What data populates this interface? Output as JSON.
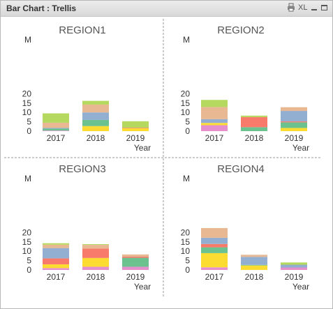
{
  "window": {
    "title": "Bar Chart : Trellis",
    "icons": [
      "print-icon",
      "xl-export-icon",
      "minimize-icon",
      "maximize-icon"
    ],
    "xl_label": "XL"
  },
  "chart_data": {
    "type": "bar",
    "stacked": true,
    "layout": "trellis 2x2",
    "categories": [
      "2017",
      "2018",
      "2019"
    ],
    "xlabel": "Year",
    "ylabel": "M",
    "ylim": [
      0,
      20
    ],
    "yticks": [
      0,
      5,
      10,
      15,
      20
    ],
    "grid": false,
    "series_colors": [
      "#e58fcc",
      "#fcdc31",
      "#6cc28e",
      "#f87a6a",
      "#92aed1",
      "#e8b893",
      "#b5d95f"
    ],
    "panels": [
      {
        "title": "REGION1",
        "series": [
          {
            "values": [
              0.3,
              0,
              0
            ]
          },
          {
            "values": [
              0,
              2.7,
              1.5
            ]
          },
          {
            "values": [
              1,
              3.3,
              0
            ]
          },
          {
            "values": [
              0,
              0,
              0.3
            ]
          },
          {
            "values": [
              0.4,
              4,
              0
            ]
          },
          {
            "values": [
              2.8,
              4.2,
              0
            ]
          },
          {
            "values": [
              5,
              2,
              3.5
            ]
          }
        ]
      },
      {
        "title": "REGION2",
        "series": [
          {
            "values": [
              3.2,
              0,
              0
            ]
          },
          {
            "values": [
              1.2,
              0,
              1.7
            ]
          },
          {
            "values": [
              0,
              2.1,
              3
            ]
          },
          {
            "values": [
              0,
              5.4,
              0.5
            ]
          },
          {
            "values": [
              2,
              0,
              5.6
            ]
          },
          {
            "values": [
              6.5,
              0,
              2
            ]
          },
          {
            "values": [
              3.8,
              0.8,
              0
            ]
          }
        ]
      },
      {
        "title": "REGION3",
        "series": [
          {
            "values": [
              1,
              1.7,
              1.7
            ]
          },
          {
            "values": [
              2,
              4.7,
              0
            ]
          },
          {
            "values": [
              0,
              0,
              4.8
            ]
          },
          {
            "values": [
              3.2,
              5,
              0.6
            ]
          },
          {
            "values": [
              5.5,
              0,
              0
            ]
          },
          {
            "values": [
              1.8,
              2,
              1.2
            ]
          },
          {
            "values": [
              0.8,
              0.4,
              0
            ]
          }
        ]
      },
      {
        "title": "REGION4",
        "series": [
          {
            "values": [
              1.4,
              0,
              1.3
            ]
          },
          {
            "values": [
              7.6,
              2.4,
              0
            ]
          },
          {
            "values": [
              3.1,
              0.3,
              0
            ]
          },
          {
            "values": [
              1.8,
              0,
              0
            ]
          },
          {
            "values": [
              3.3,
              4.3,
              1.5
            ]
          },
          {
            "values": [
              5.2,
              1.1,
              0
            ]
          },
          {
            "values": [
              0,
              0,
              1.2
            ]
          }
        ]
      }
    ]
  }
}
